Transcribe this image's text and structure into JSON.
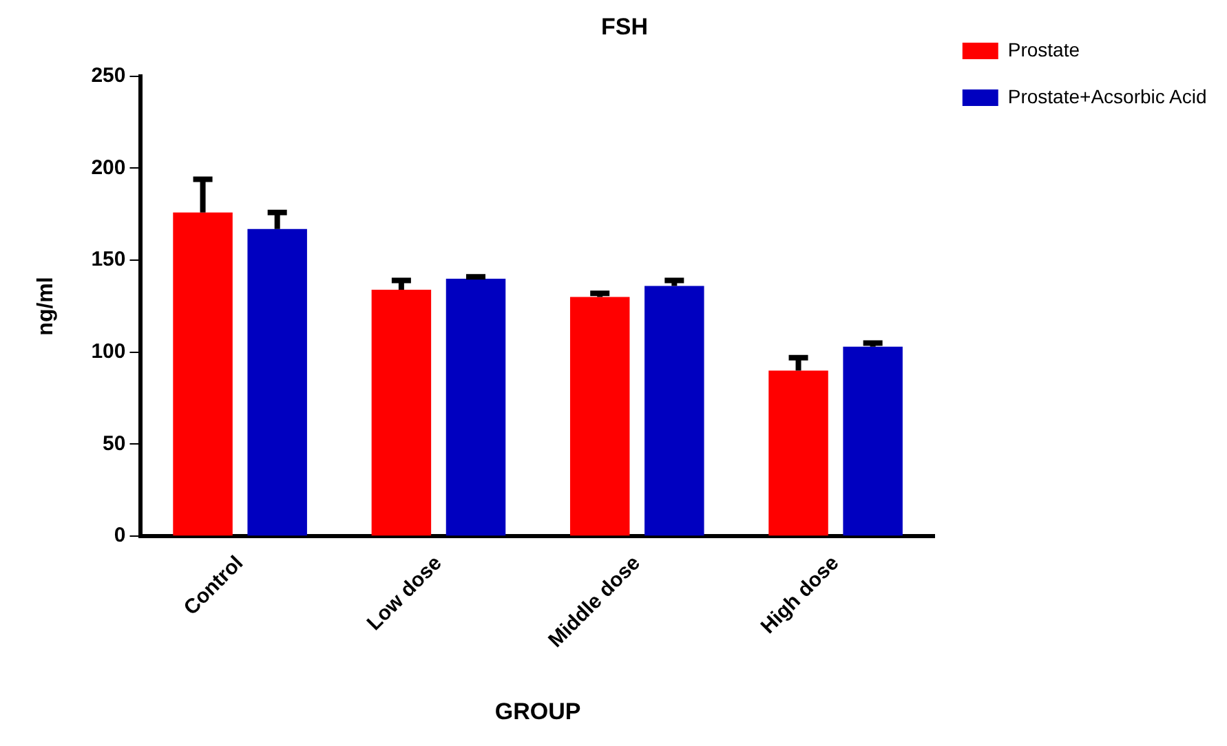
{
  "chart_data": {
    "type": "bar",
    "title": "FSH",
    "xlabel": "GROUP",
    "ylabel": "ng/ml",
    "categories": [
      "Control",
      "Low dose",
      "Middle dose",
      "High dose"
    ],
    "series": [
      {
        "name": "Prostate",
        "color": "#ff0000",
        "values": [
          176,
          134,
          130,
          90
        ],
        "errors": [
          [
            176,
            194
          ],
          [
            134,
            139
          ],
          [
            130,
            132
          ],
          [
            90,
            97
          ]
        ]
      },
      {
        "name": "Prostate+Acsorbic Acid",
        "color": "#0000c0",
        "values": [
          167,
          140,
          136,
          103
        ],
        "errors": [
          [
            167,
            176
          ],
          [
            140,
            141
          ],
          [
            136,
            139
          ],
          [
            103,
            105
          ]
        ]
      }
    ],
    "ylim": [
      0,
      250
    ],
    "yticks": [
      0,
      50,
      100,
      150,
      200,
      250
    ],
    "grid": false,
    "legend": "top right"
  }
}
